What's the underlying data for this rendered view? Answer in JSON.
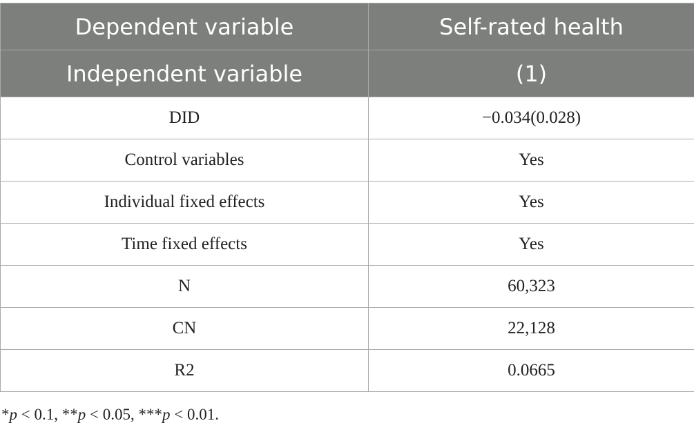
{
  "header": {
    "row1": [
      "Dependent variable",
      "Self-rated health"
    ],
    "row2": [
      "Independent variable",
      "(1)"
    ]
  },
  "rows": [
    {
      "label": "DID",
      "value": "−0.034(0.028)"
    },
    {
      "label": "Control variables",
      "value": "Yes"
    },
    {
      "label": "Individual fixed effects",
      "value": "Yes"
    },
    {
      "label": "Time fixed effects",
      "value": "Yes"
    },
    {
      "label": "N",
      "value": "60,323"
    },
    {
      "label": "CN",
      "value": "22,128"
    },
    {
      "label": "R2",
      "value": "0.0665"
    }
  ],
  "footnote": {
    "part1_stars": "*",
    "p1": "p",
    "t1": " < 0.1, **",
    "p2": "p",
    "t2": " < 0.05, ***",
    "p3": "p",
    "t3": " < 0.01."
  }
}
